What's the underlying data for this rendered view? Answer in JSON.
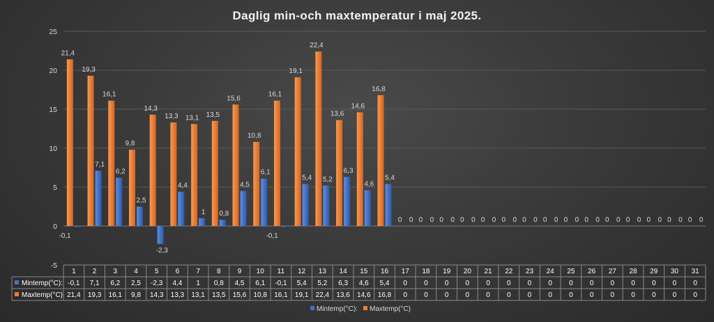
{
  "chart_data": {
    "type": "bar",
    "title": "Daglig min-och maxtemperatur i maj 2025.",
    "categories": [
      "1",
      "2",
      "3",
      "4",
      "5",
      "6",
      "7",
      "8",
      "9",
      "10",
      "11",
      "12",
      "13",
      "14",
      "15",
      "16",
      "17",
      "18",
      "19",
      "20",
      "21",
      "22",
      "23",
      "24",
      "25",
      "26",
      "27",
      "28",
      "29",
      "30",
      "31"
    ],
    "series": [
      {
        "name": "Mintemp(°C):",
        "color": "#4472c4",
        "values": [
          -0.1,
          7.1,
          6.2,
          2.5,
          -2.3,
          4.4,
          1,
          0.8,
          4.5,
          6.1,
          -0.1,
          5.4,
          5.2,
          6.3,
          4.6,
          5.4,
          0,
          0,
          0,
          0,
          0,
          0,
          0,
          0,
          0,
          0,
          0,
          0,
          0,
          0,
          0
        ],
        "labels": [
          "-0,1",
          "7,1",
          "6,2",
          "2,5",
          "-2,3",
          "4,4",
          "1",
          "0,8",
          "4,5",
          "6,1",
          "-0,1",
          "5,4",
          "5,2",
          "6,3",
          "4,6",
          "5,4",
          "0",
          "0",
          "0",
          "0",
          "0",
          "0",
          "0",
          "0",
          "0",
          "0",
          "0",
          "0",
          "0",
          "0",
          "0"
        ]
      },
      {
        "name": "Maxtemp(°C)",
        "color": "#ed7d31",
        "values": [
          21.4,
          19.3,
          16.1,
          9.8,
          14.3,
          13.3,
          13.1,
          13.5,
          15.6,
          10.8,
          16.1,
          19.1,
          22.4,
          13.6,
          14.6,
          16.8,
          0,
          0,
          0,
          0,
          0,
          0,
          0,
          0,
          0,
          0,
          0,
          0,
          0,
          0,
          0
        ],
        "labels": [
          "21,4",
          "19,3",
          "16,1",
          "9,8",
          "14,3",
          "13,3",
          "13,1",
          "13,5",
          "15,6",
          "10,8",
          "16,1",
          "19,1",
          "22,4",
          "13,6",
          "14,6",
          "16,8",
          "0",
          "0",
          "0",
          "0",
          "0",
          "0",
          "0",
          "0",
          "0",
          "0",
          "0",
          "0",
          "0",
          "0",
          "0"
        ]
      }
    ],
    "ylim": [
      -5,
      25
    ],
    "yticks": [
      "-5",
      "0",
      "5",
      "10",
      "15",
      "20",
      "25"
    ],
    "ytick_values": [
      -5,
      0,
      5,
      10,
      15,
      20,
      25
    ],
    "grid": true,
    "legend": "bottom",
    "data_table": true
  }
}
